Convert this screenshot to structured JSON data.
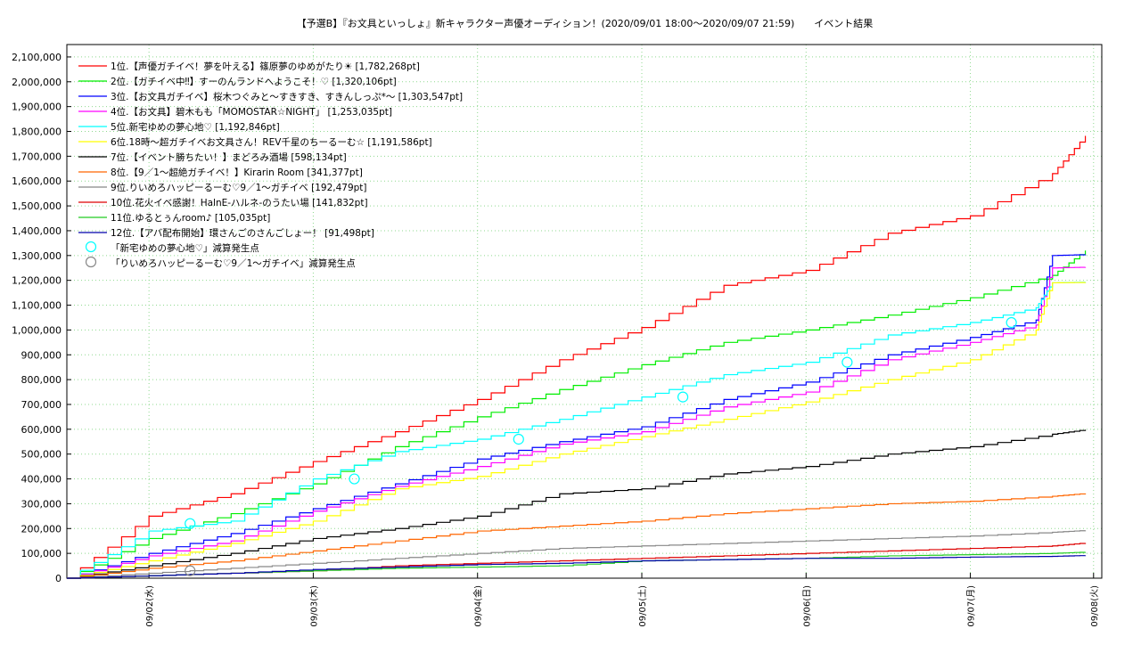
{
  "chart_data": {
    "type": "line",
    "title": "【予選B】『お文具といっしょ』新キャラクター声優オーディション！(2020/09/01 18:00〜2020/09/07 21:59)　　イベント結果",
    "x_ticks": [
      "09/02(水)",
      "09/03(木)",
      "09/04(金)",
      "09/05(土)",
      "09/06(日)",
      "09/07(月)",
      "09/08(火)"
    ],
    "x_range": [
      "2020/09/01 18:00",
      "2020/09/08 00:00"
    ],
    "ylim": [
      0,
      2150000
    ],
    "y_ticks": [
      "0",
      "100,000",
      "200,000",
      "300,000",
      "400,000",
      "500,000",
      "600,000",
      "700,000",
      "800,000",
      "900,000",
      "1,000,000",
      "1,100,000",
      "1,200,000",
      "1,300,000",
      "1,400,000",
      "1,500,000",
      "1,600,000",
      "1,700,000",
      "1,800,000",
      "1,900,000",
      "2,000,000",
      "2,100,000"
    ],
    "grid": true,
    "legend_position": "top-left",
    "series": [
      {
        "name": "1位.【声優ガチイベ！夢を叶える】篠原夢のゆめがたり☀ [1,782,268pt]",
        "color": "#ff0000",
        "x": [
          0,
          0.5,
          1,
          1.5,
          2,
          2.5,
          3,
          3.5,
          4,
          4.5,
          5,
          5.5,
          6,
          6.2
        ],
        "y": [
          0,
          250000,
          340000,
          470000,
          590000,
          720000,
          880000,
          1010000,
          1180000,
          1240000,
          1390000,
          1460000,
          1630000,
          1782268
        ]
      },
      {
        "name": "2位.【ガチイベ中‼】すーのんランドへようこそ！♡ [1,320,106pt]",
        "color": "#00ee00",
        "x": [
          0,
          0.5,
          1,
          1.5,
          2,
          2.5,
          3,
          3.5,
          4,
          4.5,
          5,
          5.5,
          6,
          6.2
        ],
        "y": [
          0,
          160000,
          260000,
          380000,
          530000,
          650000,
          760000,
          860000,
          950000,
          1000000,
          1060000,
          1130000,
          1220000,
          1320106
        ]
      },
      {
        "name": "3位.【お文具ガチイベ】桜木つぐみと〜すきすき、すきんしっぷ*〜 [1,303,547pt]",
        "color": "#0000ff",
        "x": [
          0,
          0.5,
          1,
          1.5,
          2,
          2.5,
          3,
          3.5,
          4,
          4.5,
          5,
          5.5,
          5.9,
          6.0,
          6.2
        ],
        "y": [
          0,
          100000,
          180000,
          280000,
          380000,
          480000,
          550000,
          610000,
          720000,
          790000,
          900000,
          970000,
          1040000,
          1300000,
          1303547
        ]
      },
      {
        "name": "4位.【お文具】碧木もも「MOMOSTAR☆NIGHT」 [1,253,035pt]",
        "color": "#ff00ff",
        "x": [
          0,
          0.5,
          1,
          1.5,
          2,
          2.5,
          3,
          3.5,
          4,
          4.5,
          5,
          5.5,
          5.9,
          6.0,
          6.2
        ],
        "y": [
          0,
          90000,
          150000,
          270000,
          370000,
          450000,
          540000,
          590000,
          690000,
          750000,
          880000,
          950000,
          1020000,
          1250000,
          1253035
        ]
      },
      {
        "name": "5位.新宅ゆめの夢心地♡ [1,192,846pt]",
        "color": "#00ffff",
        "x": [
          0,
          0.5,
          1,
          1.5,
          2,
          2.5,
          3,
          3.5,
          4,
          4.5,
          5,
          5.5,
          5.9,
          6.0,
          6.2
        ],
        "y": [
          0,
          190000,
          230000,
          400000,
          510000,
          560000,
          640000,
          730000,
          820000,
          870000,
          980000,
          1030000,
          1090000,
          1190000,
          1192846
        ]
      },
      {
        "name": "6位.18時〜超ガチイベお文具さん！REV千星のちーるーむ☆ [1,191,586pt]",
        "color": "#ffff00",
        "x": [
          0,
          0.5,
          1,
          1.5,
          2,
          2.5,
          3,
          3.5,
          4,
          4.5,
          5,
          5.5,
          5.9,
          6.0,
          6.2
        ],
        "y": [
          0,
          70000,
          140000,
          230000,
          360000,
          410000,
          500000,
          570000,
          640000,
          710000,
          800000,
          880000,
          1000000,
          1190000,
          1191586
        ]
      },
      {
        "name": "7位.【イベント勝ちたい！】まどろみ酒場 [598,134pt]",
        "color": "#000000",
        "x": [
          0,
          0.5,
          1,
          1.5,
          2,
          2.5,
          3,
          3.5,
          4,
          4.5,
          5,
          5.5,
          6,
          6.2
        ],
        "y": [
          0,
          50000,
          100000,
          160000,
          200000,
          250000,
          340000,
          360000,
          420000,
          450000,
          500000,
          530000,
          580000,
          598134
        ]
      },
      {
        "name": "8位.【9／1〜超絶ガチイベ！】Kirarin Room [341,377pt]",
        "color": "#ff6600",
        "x": [
          0,
          0.5,
          1,
          1.5,
          2,
          2.5,
          3,
          3.5,
          4,
          4.5,
          5,
          5.5,
          6,
          6.2
        ],
        "y": [
          0,
          40000,
          70000,
          110000,
          150000,
          190000,
          210000,
          230000,
          260000,
          280000,
          300000,
          310000,
          330000,
          341377
        ]
      },
      {
        "name": "9位.りいめろハッピーるーむ♡9／1〜ガチイベ [192,479pt]",
        "color": "#888888",
        "x": [
          0,
          0.5,
          1,
          1.5,
          2,
          2.5,
          3,
          3.5,
          4,
          4.5,
          5,
          5.5,
          6,
          6.2
        ],
        "y": [
          0,
          20000,
          40000,
          60000,
          80000,
          100000,
          120000,
          130000,
          140000,
          150000,
          160000,
          170000,
          185000,
          192479
        ]
      },
      {
        "name": "10位.花火イベ感謝！HalnE-ハルネ-のうたい場 [141,832pt]",
        "color": "#dd0000",
        "x": [
          0,
          0.5,
          1,
          1.5,
          2,
          2.5,
          3,
          3.5,
          4,
          4.5,
          5,
          5.5,
          6,
          6.2
        ],
        "y": [
          0,
          10000,
          20000,
          30000,
          50000,
          60000,
          70000,
          80000,
          90000,
          100000,
          110000,
          120000,
          130000,
          141832
        ]
      },
      {
        "name": "11位.ゆるとぅんroom♪ [105,035pt]",
        "color": "#22cc22",
        "x": [
          0,
          0.5,
          1,
          1.5,
          2,
          2.5,
          3,
          3.5,
          4,
          4.5,
          5,
          5.5,
          6,
          6.2
        ],
        "y": [
          0,
          10000,
          20000,
          30000,
          40000,
          45000,
          50000,
          70000,
          75000,
          80000,
          90000,
          95000,
          100000,
          105035
        ]
      },
      {
        "name": "12位.【アバ配布開始】環さんごのさんごしょー！ [91,498pt]",
        "color": "#0000aa",
        "x": [
          0,
          0.5,
          1,
          1.5,
          2,
          2.5,
          3,
          3.5,
          4,
          4.5,
          5,
          5.5,
          6,
          6.2
        ],
        "y": [
          0,
          10000,
          20000,
          35000,
          45000,
          55000,
          60000,
          70000,
          75000,
          80000,
          80000,
          85000,
          88000,
          91498
        ]
      }
    ],
    "markers": [
      {
        "name": "「新宅ゆめの夢心地♡」減算発生点",
        "color": "#00ffff",
        "points": [
          {
            "x": 0.75,
            "y": 220000
          },
          {
            "x": 1.75,
            "y": 400000
          },
          {
            "x": 2.75,
            "y": 560000
          },
          {
            "x": 3.75,
            "y": 730000
          },
          {
            "x": 4.75,
            "y": 870000
          },
          {
            "x": 5.75,
            "y": 1030000
          }
        ]
      },
      {
        "name": "「りいめろハッピーるーむ♡9／1〜ガチイベ」減算発生点",
        "color": "#888888",
        "points": [
          {
            "x": 0.75,
            "y": 30000
          }
        ]
      }
    ]
  }
}
